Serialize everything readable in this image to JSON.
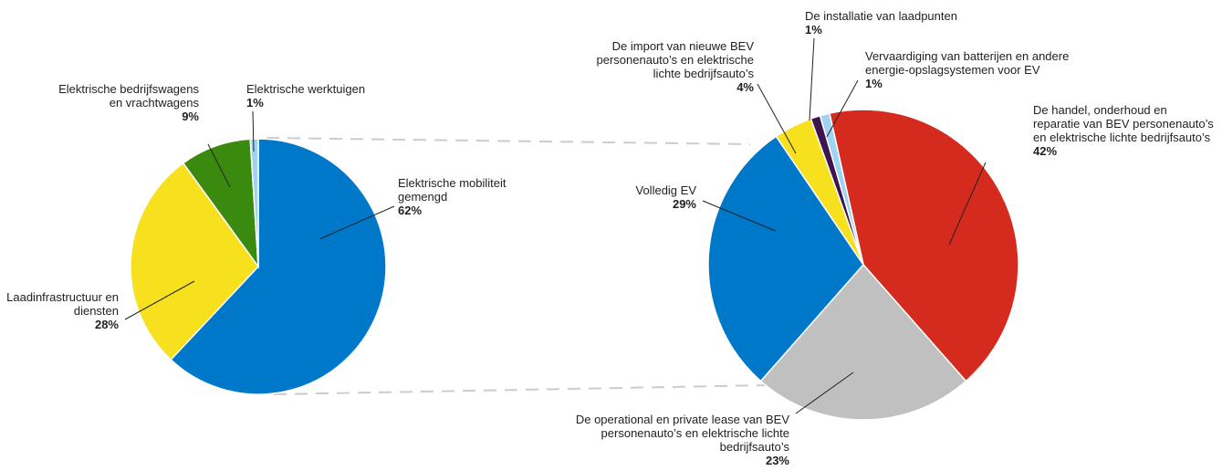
{
  "chart_data": [
    {
      "type": "pie",
      "categories": [
        "Elektrische mobiliteit gemengd",
        "Laadinfrastructuur en diensten",
        "Elektrische bedrijfswagens en vrachtwagens",
        "Elektrische werktuigen"
      ],
      "values": [
        62,
        28,
        9,
        1
      ],
      "value_labels": [
        "62%",
        "28%",
        "9%",
        "1%"
      ],
      "colors": [
        "#0078c9",
        "#f7e11e",
        "#3a8a0f",
        "#9fd3f2"
      ]
    },
    {
      "type": "pie",
      "categories": [
        "De handel, onderhoud en reparatie van BEV personenauto’s en elektrische lichte bedrijfsauto’s",
        "De operational en private lease van BEV personenauto’s en elektrische lichte bedrijfsauto’s",
        "Volledig EV",
        "De import van nieuwe BEV personenauto’s en elektrische lichte bedrijfsauto’s",
        "De installatie van laadpunten",
        "Vervaardiging van batterijen en andere energie-opslagsystemen voor EV"
      ],
      "values": [
        42,
        23,
        29,
        4,
        1,
        1
      ],
      "value_labels": [
        "42%",
        "23%",
        "29%",
        "4%",
        "1%",
        "1%"
      ],
      "colors": [
        "#d52b1e",
        "#c0c0c0",
        "#0078c9",
        "#f7e11e",
        "#3d1450",
        "#9fd3f2"
      ]
    }
  ]
}
